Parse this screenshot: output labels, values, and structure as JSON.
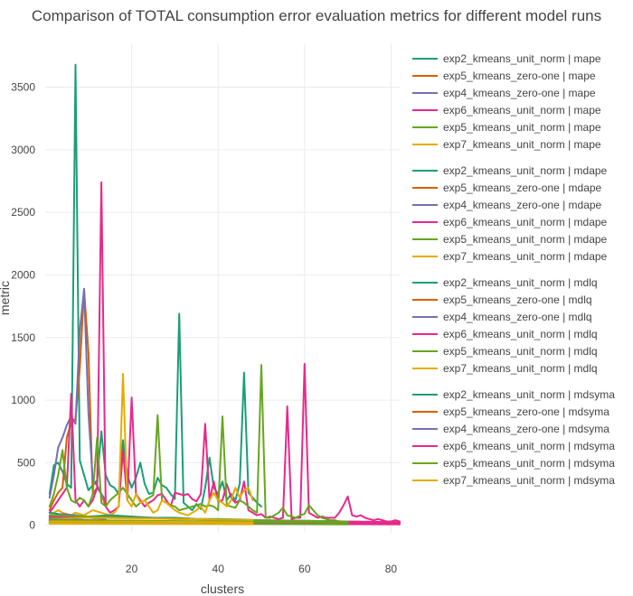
{
  "chart_data": {
    "type": "line",
    "title": "Comparison of TOTAL consumption error evaluation metrics for different model runs",
    "xlabel": "clusters",
    "ylabel": "metric",
    "xlim": [
      0,
      82
    ],
    "ylim": [
      -60,
      3850
    ],
    "x_ticks": [
      20,
      40,
      60,
      80
    ],
    "y_ticks": [
      0,
      500,
      1000,
      1500,
      2000,
      2500,
      3000,
      3500
    ],
    "grid": true,
    "legend_position": "right",
    "legend_groups": [
      {
        "metric": "mape",
        "entries": [
          {
            "name": "exp2_kmeans_unit_norm | mape",
            "color": "#1b9e77"
          },
          {
            "name": "exp5_kmeans_zero-one | mape",
            "color": "#d95f02"
          },
          {
            "name": "exp4_kmeans_zero-one | mape",
            "color": "#7570b3"
          },
          {
            "name": "exp6_kmeans_unit_norm | mape",
            "color": "#e7298a"
          },
          {
            "name": "exp5_kmeans_unit_norm | mape",
            "color": "#66a61e"
          },
          {
            "name": "exp7_kmeans_unit_norm | mape",
            "color": "#e6ab02"
          }
        ]
      },
      {
        "metric": "mdape",
        "entries": [
          {
            "name": "exp2_kmeans_unit_norm | mdape",
            "color": "#1b9e77"
          },
          {
            "name": "exp5_kmeans_zero-one | mdape",
            "color": "#d95f02"
          },
          {
            "name": "exp4_kmeans_zero-one | mdape",
            "color": "#7570b3"
          },
          {
            "name": "exp6_kmeans_unit_norm | mdape",
            "color": "#e7298a"
          },
          {
            "name": "exp5_kmeans_unit_norm | mdape",
            "color": "#66a61e"
          },
          {
            "name": "exp7_kmeans_unit_norm | mdape",
            "color": "#e6ab02"
          }
        ]
      },
      {
        "metric": "mdlq",
        "entries": [
          {
            "name": "exp2_kmeans_unit_norm | mdlq",
            "color": "#1b9e77"
          },
          {
            "name": "exp5_kmeans_zero-one | mdlq",
            "color": "#d95f02"
          },
          {
            "name": "exp4_kmeans_zero-one | mdlq",
            "color": "#7570b3"
          },
          {
            "name": "exp6_kmeans_unit_norm | mdlq",
            "color": "#e7298a"
          },
          {
            "name": "exp5_kmeans_unit_norm | mdlq",
            "color": "#66a61e"
          },
          {
            "name": "exp7_kmeans_unit_norm | mdlq",
            "color": "#e6ab02"
          }
        ]
      },
      {
        "metric": "mdsyma",
        "entries": [
          {
            "name": "exp2_kmeans_unit_norm | mdsyma",
            "color": "#1b9e77"
          },
          {
            "name": "exp5_kmeans_zero-one | mdsyma",
            "color": "#d95f02"
          },
          {
            "name": "exp4_kmeans_zero-one | mdsyma",
            "color": "#7570b3"
          },
          {
            "name": "exp6_kmeans_unit_norm | mdsyma",
            "color": "#e7298a"
          },
          {
            "name": "exp5_kmeans_unit_norm | mdsyma",
            "color": "#66a61e"
          },
          {
            "name": "exp7_kmeans_unit_norm | mdsyma",
            "color": "#e6ab02"
          }
        ]
      }
    ],
    "series": [
      {
        "name": "exp2_kmeans_unit_norm | mape",
        "color": "#1b9e77",
        "x": [
          1,
          2,
          3,
          4,
          5,
          6,
          7,
          8,
          9,
          10,
          11,
          12,
          13,
          14,
          15,
          16,
          17,
          18,
          19,
          20,
          21,
          22,
          23,
          24,
          25,
          26,
          27,
          28,
          29,
          30,
          31,
          32,
          33,
          34,
          35,
          36,
          37,
          38,
          39,
          40,
          41,
          42,
          43,
          44,
          45,
          46,
          47,
          48,
          49,
          50
        ],
        "y": [
          250,
          480,
          500,
          430,
          330,
          300,
          3680,
          520,
          400,
          280,
          320,
          360,
          750,
          400,
          320,
          300,
          250,
          680,
          400,
          300,
          380,
          500,
          330,
          250,
          260,
          380,
          320,
          300,
          250,
          210,
          1690,
          180,
          150,
          120,
          170,
          130,
          300,
          540,
          300,
          250,
          350,
          200,
          250,
          200,
          330,
          1220,
          260,
          220,
          180,
          150
        ]
      },
      {
        "name": "exp5_kmeans_zero-one | mape",
        "color": "#d95f02",
        "x": [
          1,
          2,
          3,
          4,
          5,
          6,
          7,
          8,
          9,
          10,
          11,
          12,
          13,
          14
        ],
        "y": [
          120,
          200,
          260,
          300,
          700,
          820,
          850,
          1250,
          1880,
          1380,
          250,
          300,
          250,
          150
        ]
      },
      {
        "name": "exp4_kmeans_zero-one | mape",
        "color": "#7570b3",
        "x": [
          1,
          2,
          3,
          4,
          5,
          6,
          7,
          8,
          9,
          10,
          11,
          12,
          13,
          14
        ],
        "y": [
          220,
          400,
          620,
          700,
          800,
          870,
          810,
          1550,
          1890,
          900,
          350,
          320,
          250,
          200
        ]
      },
      {
        "name": "exp6_kmeans_unit_norm | mape",
        "color": "#e7298a",
        "x": [
          1,
          2,
          3,
          4,
          5,
          6,
          7,
          8,
          9,
          10,
          11,
          12,
          13,
          14,
          15,
          16,
          17,
          18,
          19,
          20,
          21,
          22,
          23,
          24,
          25,
          26,
          27,
          28,
          29,
          30,
          31,
          32,
          33,
          34,
          35,
          36,
          37,
          38,
          39,
          40,
          41,
          42,
          43,
          44,
          45,
          46,
          47,
          48,
          49,
          50,
          51,
          52,
          53,
          54,
          55,
          56,
          57,
          58,
          59,
          60,
          61,
          62,
          63,
          64,
          65,
          66,
          67,
          68,
          69,
          70,
          71,
          72,
          73,
          74,
          75,
          76,
          77,
          78,
          79,
          80,
          81,
          82
        ],
        "y": [
          100,
          150,
          200,
          250,
          300,
          1050,
          200,
          150,
          200,
          150,
          200,
          300,
          2740,
          150,
          100,
          120,
          150,
          600,
          200,
          1020,
          250,
          200,
          150,
          180,
          200,
          240,
          250,
          200,
          150,
          260,
          250,
          240,
          250,
          210,
          190,
          250,
          810,
          200,
          350,
          190,
          200,
          330,
          220,
          180,
          200,
          350,
          120,
          100,
          80,
          90,
          60,
          70,
          60,
          50,
          60,
          950,
          50,
          60,
          60,
          1290,
          100,
          80,
          60,
          70,
          60,
          60,
          60,
          100,
          160,
          230,
          80,
          70,
          80,
          60,
          50,
          40,
          50,
          40,
          30,
          30,
          40,
          30
        ]
      },
      {
        "name": "exp5_kmeans_unit_norm | mape",
        "color": "#66a61e",
        "x": [
          1,
          2,
          3,
          4,
          5,
          6,
          7,
          8,
          9,
          10,
          11,
          12,
          13,
          14,
          15,
          16,
          17,
          18,
          19,
          20,
          21,
          22,
          23,
          24,
          25,
          26,
          27,
          28,
          29,
          30,
          31,
          32,
          33,
          34,
          35,
          36,
          37,
          38,
          39,
          40,
          41,
          42,
          43,
          44,
          45,
          46,
          47,
          48,
          49,
          50,
          51,
          52,
          53,
          54,
          55,
          56,
          57,
          58,
          59,
          60,
          61,
          62,
          63,
          64,
          65,
          66,
          67,
          68,
          69,
          70
        ],
        "y": [
          150,
          250,
          400,
          600,
          300,
          200,
          180,
          220,
          200,
          150,
          250,
          700,
          180,
          150,
          200,
          230,
          260,
          300,
          250,
          200,
          150,
          180,
          200,
          220,
          240,
          880,
          200,
          180,
          160,
          150,
          120,
          130,
          140,
          150,
          160,
          170,
          150,
          160,
          150,
          120,
          870,
          160,
          150,
          140,
          200,
          180,
          150,
          120,
          100,
          1280,
          60,
          60,
          80,
          100,
          140,
          80,
          70,
          60,
          80,
          90,
          160,
          120,
          80,
          60,
          50,
          40,
          40,
          30,
          30,
          30
        ]
      },
      {
        "name": "exp7_kmeans_unit_norm | mape",
        "color": "#e6ab02",
        "x": [
          1,
          2,
          3,
          4,
          5,
          6,
          7,
          8,
          9,
          10,
          11,
          12,
          13,
          14,
          15,
          16,
          17,
          18,
          19,
          20,
          21,
          22,
          23,
          24,
          25,
          26,
          27,
          28,
          29,
          30,
          31,
          32,
          33,
          34,
          35,
          36,
          37,
          38,
          39,
          40,
          41,
          42,
          43,
          44,
          45,
          46,
          47,
          48
        ],
        "y": [
          80,
          100,
          120,
          100,
          90,
          80,
          100,
          90,
          80,
          100,
          120,
          110,
          100,
          90,
          80,
          100,
          150,
          1210,
          200,
          150,
          250,
          180,
          200,
          150,
          100,
          120,
          200,
          180,
          150,
          120,
          100,
          90,
          80,
          100,
          120,
          150,
          100,
          200,
          260,
          200,
          180,
          150,
          200,
          300,
          220,
          280,
          300,
          200
        ]
      },
      {
        "name": "exp2_kmeans_unit_norm | mdape",
        "color": "#1b9e77",
        "x": [
          1,
          5,
          10,
          15,
          20,
          25,
          30,
          35,
          40,
          45,
          50
        ],
        "y": [
          100,
          80,
          70,
          80,
          70,
          60,
          60,
          50,
          50,
          45,
          40
        ]
      },
      {
        "name": "exp5_kmeans_zero-one | mdape",
        "color": "#d95f02",
        "x": [
          1,
          4,
          7,
          10,
          14
        ],
        "y": [
          60,
          70,
          80,
          60,
          50
        ]
      },
      {
        "name": "exp4_kmeans_zero-one | mdape",
        "color": "#7570b3",
        "x": [
          1,
          4,
          7,
          10,
          14
        ],
        "y": [
          70,
          90,
          80,
          60,
          50
        ]
      },
      {
        "name": "exp6_kmeans_unit_norm | mdape",
        "color": "#e7298a",
        "x": [
          1,
          10,
          20,
          30,
          40,
          50,
          60,
          70,
          82
        ],
        "y": [
          60,
          70,
          60,
          50,
          45,
          40,
          35,
          30,
          25
        ]
      },
      {
        "name": "exp5_kmeans_unit_norm | mdape",
        "color": "#66a61e",
        "x": [
          1,
          10,
          20,
          30,
          40,
          50,
          60,
          70
        ],
        "y": [
          80,
          70,
          60,
          50,
          45,
          40,
          35,
          30
        ]
      },
      {
        "name": "exp7_kmeans_unit_norm | mdape",
        "color": "#e6ab02",
        "x": [
          1,
          10,
          20,
          30,
          40,
          48
        ],
        "y": [
          50,
          60,
          55,
          50,
          45,
          40
        ]
      },
      {
        "name": "exp2_kmeans_unit_norm | mdlq",
        "color": "#1b9e77",
        "x": [
          1,
          10,
          20,
          30,
          40,
          50
        ],
        "y": [
          20,
          20,
          18,
          15,
          15,
          12
        ]
      },
      {
        "name": "exp5_kmeans_zero-one | mdlq",
        "color": "#d95f02",
        "x": [
          1,
          7,
          14
        ],
        "y": [
          15,
          20,
          15
        ]
      },
      {
        "name": "exp4_kmeans_zero-one | mdlq",
        "color": "#7570b3",
        "x": [
          1,
          7,
          14
        ],
        "y": [
          18,
          22,
          16
        ]
      },
      {
        "name": "exp6_kmeans_unit_norm | mdlq",
        "color": "#e7298a",
        "x": [
          1,
          20,
          40,
          60,
          82
        ],
        "y": [
          15,
          14,
          12,
          10,
          8
        ]
      },
      {
        "name": "exp5_kmeans_unit_norm | mdlq",
        "color": "#66a61e",
        "x": [
          1,
          20,
          40,
          60,
          70
        ],
        "y": [
          18,
          15,
          12,
          10,
          8
        ]
      },
      {
        "name": "exp7_kmeans_unit_norm | mdlq",
        "color": "#e6ab02",
        "x": [
          1,
          20,
          40,
          48
        ],
        "y": [
          14,
          12,
          10,
          9
        ]
      },
      {
        "name": "exp2_kmeans_unit_norm | mdsyma",
        "color": "#1b9e77",
        "x": [
          1,
          10,
          20,
          30,
          40,
          50
        ],
        "y": [
          45,
          40,
          35,
          30,
          30,
          25
        ]
      },
      {
        "name": "exp5_kmeans_zero-one | mdsyma",
        "color": "#d95f02",
        "x": [
          1,
          7,
          14
        ],
        "y": [
          35,
          40,
          30
        ]
      },
      {
        "name": "exp4_kmeans_zero-one | mdsyma",
        "color": "#7570b3",
        "x": [
          1,
          7,
          14
        ],
        "y": [
          38,
          45,
          32
        ]
      },
      {
        "name": "exp6_kmeans_unit_norm | mdsyma",
        "color": "#e7298a",
        "x": [
          1,
          20,
          40,
          60,
          82
        ],
        "y": [
          35,
          30,
          28,
          22,
          18
        ]
      },
      {
        "name": "exp5_kmeans_unit_norm | mdsyma",
        "color": "#66a61e",
        "x": [
          1,
          20,
          40,
          60,
          70
        ],
        "y": [
          40,
          35,
          30,
          25,
          20
        ]
      },
      {
        "name": "exp7_kmeans_unit_norm | mdsyma",
        "color": "#e6ab02",
        "x": [
          1,
          20,
          40,
          48
        ],
        "y": [
          30,
          28,
          25,
          22
        ]
      }
    ]
  }
}
